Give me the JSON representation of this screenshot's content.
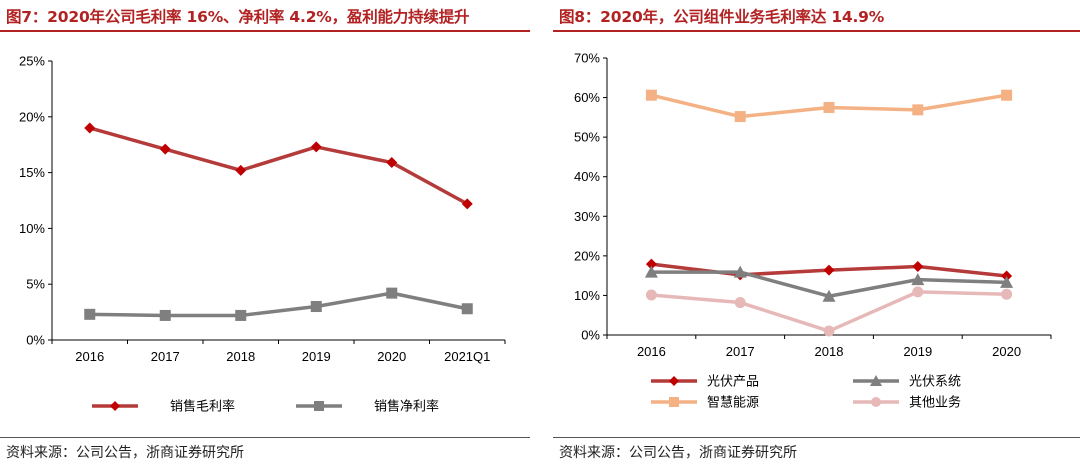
{
  "left": {
    "title": "图7：2020年公司毛利率 16%、净利率 4.2%，盈利能力持续提升",
    "source": "资料来源：公司公告，浙商证券研究所"
  },
  "right": {
    "title": "图8：2020年，公司组件业务毛利率达 14.9%",
    "source": "资料来源：公司公告，浙商证券研究所"
  },
  "colors": {
    "accent": "#b22222",
    "series_red": "#b53a3a",
    "series_gray": "#7f7f7f",
    "series_orange": "#f4b183",
    "series_pink": "#e6b9b8",
    "marker_red": "#c00000"
  },
  "chart_data": [
    {
      "type": "line",
      "title": "2020年公司毛利率 16%、净利率 4.2%，盈利能力持续提升",
      "categories": [
        "2016",
        "2017",
        "2018",
        "2019",
        "2020",
        "2021Q1"
      ],
      "series": [
        {
          "name": "销售毛利率",
          "values": [
            19.0,
            17.1,
            15.2,
            17.3,
            15.9,
            12.2
          ],
          "marker": "diamond",
          "color": "#b53a3a"
        },
        {
          "name": "销售净利率",
          "values": [
            2.3,
            2.2,
            2.2,
            3.0,
            4.2,
            2.8
          ],
          "marker": "square",
          "color": "#7f7f7f"
        }
      ],
      "ylim": [
        0,
        25
      ],
      "yticks": [
        "0%",
        "5%",
        "10%",
        "15%",
        "20%",
        "25%"
      ],
      "legend": "bottom",
      "grid": false
    },
    {
      "type": "line",
      "title": "2020年，公司组件业务毛利率达 14.9%",
      "categories": [
        "2016",
        "2017",
        "2018",
        "2019",
        "2020"
      ],
      "series": [
        {
          "name": "光伏产品",
          "values": [
            17.9,
            15.2,
            16.4,
            17.3,
            14.9
          ],
          "marker": "diamond",
          "color": "#b53a3a"
        },
        {
          "name": "光伏系统",
          "values": [
            15.9,
            15.9,
            9.8,
            14.0,
            13.3
          ],
          "marker": "triangle",
          "color": "#7f7f7f"
        },
        {
          "name": "智慧能源",
          "values": [
            60.6,
            55.2,
            57.5,
            56.9,
            60.6
          ],
          "marker": "square",
          "color": "#f4b183"
        },
        {
          "name": "其他业务",
          "values": [
            10.1,
            8.2,
            1.0,
            10.9,
            10.3
          ],
          "marker": "circle",
          "color": "#e6b9b8"
        }
      ],
      "ylim": [
        0,
        70
      ],
      "yticks": [
        "0%",
        "10%",
        "20%",
        "30%",
        "40%",
        "50%",
        "60%",
        "70%"
      ],
      "legend": "bottom",
      "grid": false
    }
  ]
}
